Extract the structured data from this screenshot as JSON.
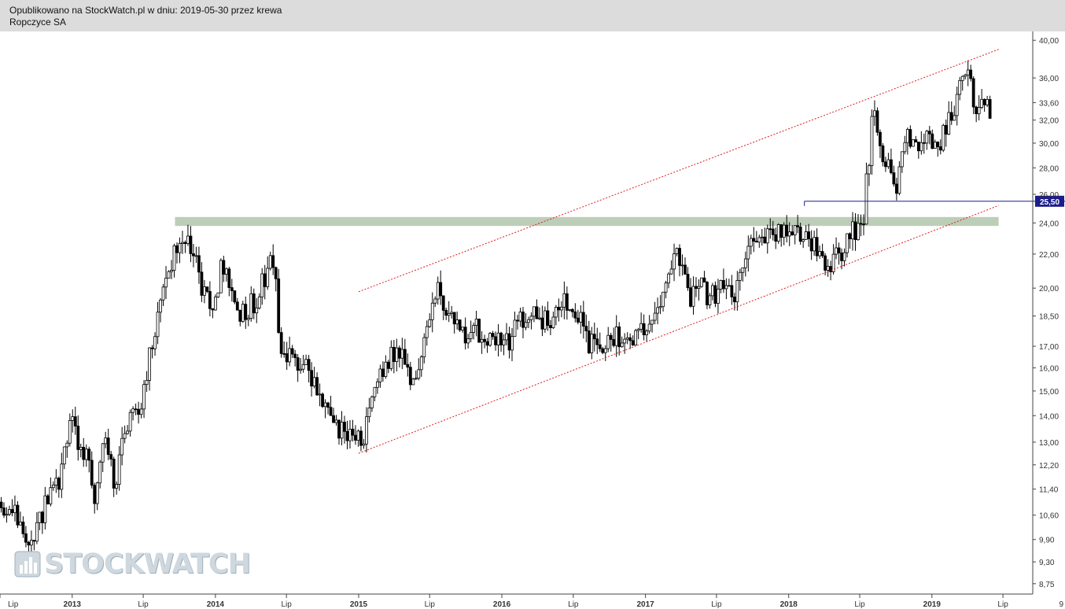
{
  "header": {
    "published": "Opublikowano na StockWatch.pl w dniu: 2019-05-30 przez krewa",
    "company": "Ropczyce SA"
  },
  "watermark": {
    "text": "STOCKWATCH"
  },
  "colors": {
    "header_bg": "#dcdcdc",
    "candle": "#000000",
    "channel": "#e31a1c",
    "zone": "#b5c9b0",
    "level": "#1c1c8c"
  },
  "chart_data": {
    "type": "candlestick",
    "title": "Ropczyce SA",
    "scale": "log",
    "grid": false,
    "ylim": [
      8.5,
      41.0
    ],
    "xlim": [
      "2012-07-01",
      "2019-09-15"
    ],
    "y_ticks": [
      {
        "value": 8.75,
        "label": "8,75"
      },
      {
        "value": 9.3,
        "label": "9,30"
      },
      {
        "value": 9.9,
        "label": "9,90"
      },
      {
        "value": 10.6,
        "label": "10,60"
      },
      {
        "value": 11.4,
        "label": "11,40"
      },
      {
        "value": 12.2,
        "label": "12,20"
      },
      {
        "value": 13.0,
        "label": "13,00"
      },
      {
        "value": 14.0,
        "label": "14,00"
      },
      {
        "value": 15.0,
        "label": "15,00"
      },
      {
        "value": 16.0,
        "label": "16,00"
      },
      {
        "value": 17.0,
        "label": "17,00"
      },
      {
        "value": 18.5,
        "label": "18,50"
      },
      {
        "value": 20.0,
        "label": "20,00"
      },
      {
        "value": 22.0,
        "label": "22,00"
      },
      {
        "value": 24.0,
        "label": "24,00"
      },
      {
        "value": 26.0,
        "label": "26,00"
      },
      {
        "value": 28.0,
        "label": "28,00"
      },
      {
        "value": 30.0,
        "label": "30,00"
      },
      {
        "value": 32.0,
        "label": "32,00"
      },
      {
        "value": 33.6,
        "label": "33,60"
      },
      {
        "value": 36.0,
        "label": "36,00"
      },
      {
        "value": 40.0,
        "label": "40,00"
      }
    ],
    "x_ticks": [
      {
        "date": "2012-07-01",
        "label": "Lip",
        "year": false
      },
      {
        "date": "2013-01-01",
        "label": "2013",
        "year": true
      },
      {
        "date": "2013-07-01",
        "label": "Lip",
        "year": false
      },
      {
        "date": "2014-01-01",
        "label": "2014",
        "year": true
      },
      {
        "date": "2014-07-01",
        "label": "Lip",
        "year": false
      },
      {
        "date": "2015-01-01",
        "label": "2015",
        "year": true
      },
      {
        "date": "2015-07-01",
        "label": "Lip",
        "year": false
      },
      {
        "date": "2016-01-01",
        "label": "2016",
        "year": true
      },
      {
        "date": "2016-07-01",
        "label": "Lip",
        "year": false
      },
      {
        "date": "2017-01-01",
        "label": "2017",
        "year": true
      },
      {
        "date": "2017-07-01",
        "label": "Lip",
        "year": false
      },
      {
        "date": "2018-01-01",
        "label": "2018",
        "year": true
      },
      {
        "date": "2018-07-01",
        "label": "Lip",
        "year": false
      },
      {
        "date": "2019-01-01",
        "label": "2019",
        "year": true
      },
      {
        "date": "2019-07-01",
        "label": "Lip",
        "year": false
      },
      {
        "date": "2019-12-31",
        "label": "9",
        "year": false
      }
    ],
    "price_path": [
      [
        "2012-06-20",
        11.2
      ],
      [
        "2012-08-15",
        10.5
      ],
      [
        "2012-09-15",
        9.5
      ],
      [
        "2012-10-20",
        10.8
      ],
      [
        "2012-11-20",
        11.3
      ],
      [
        "2012-12-10",
        12.5
      ],
      [
        "2012-12-28",
        14.3
      ],
      [
        "2013-01-15",
        13.0
      ],
      [
        "2013-02-10",
        12.3
      ],
      [
        "2013-02-28",
        11.2
      ],
      [
        "2013-03-25",
        13.2
      ],
      [
        "2013-04-20",
        11.5
      ],
      [
        "2013-05-15",
        13.5
      ],
      [
        "2013-06-20",
        14.0
      ],
      [
        "2013-07-15",
        16.5
      ],
      [
        "2013-08-10",
        19.0
      ],
      [
        "2013-09-01",
        21.0
      ],
      [
        "2013-10-15",
        23.3
      ],
      [
        "2013-11-05",
        22.0
      ],
      [
        "2013-11-25",
        20.0
      ],
      [
        "2013-12-25",
        18.8
      ],
      [
        "2014-01-20",
        21.5
      ],
      [
        "2014-02-15",
        19.0
      ],
      [
        "2014-03-15",
        18.8
      ],
      [
        "2014-04-20",
        19.3
      ],
      [
        "2014-05-15",
        21.5
      ],
      [
        "2014-06-01",
        21.3
      ],
      [
        "2014-06-15",
        17.0
      ],
      [
        "2014-07-15",
        16.2
      ],
      [
        "2014-08-20",
        16.5
      ],
      [
        "2014-09-15",
        15.0
      ],
      [
        "2014-10-10",
        14.0
      ],
      [
        "2014-11-10",
        13.6
      ],
      [
        "2014-12-15",
        13.0
      ],
      [
        "2015-01-15",
        13.3
      ],
      [
        "2015-02-15",
        15.5
      ],
      [
        "2015-03-20",
        16.5
      ],
      [
        "2015-04-25",
        16.8
      ],
      [
        "2015-05-20",
        15.2
      ],
      [
        "2015-06-15",
        17.0
      ],
      [
        "2015-07-20",
        20.0
      ],
      [
        "2015-08-20",
        18.5
      ],
      [
        "2015-09-20",
        17.5
      ],
      [
        "2015-10-20",
        18.0
      ],
      [
        "2015-11-15",
        17.2
      ],
      [
        "2015-12-15",
        17.5
      ],
      [
        "2016-01-15",
        17.2
      ],
      [
        "2016-02-15",
        18.5
      ],
      [
        "2016-03-20",
        18.4
      ],
      [
        "2016-04-20",
        18.2
      ],
      [
        "2016-05-20",
        18.4
      ],
      [
        "2016-06-20",
        19.5
      ],
      [
        "2016-07-20",
        18.5
      ],
      [
        "2016-08-15",
        17.0
      ],
      [
        "2016-09-20",
        17.3
      ],
      [
        "2016-10-20",
        17.4
      ],
      [
        "2016-11-20",
        17.6
      ],
      [
        "2016-12-20",
        17.5
      ],
      [
        "2017-01-20",
        18.0
      ],
      [
        "2017-02-15",
        19.5
      ],
      [
        "2017-03-15",
        22.5
      ],
      [
        "2017-04-01",
        21.0
      ],
      [
        "2017-04-20",
        19.5
      ],
      [
        "2017-05-20",
        20.0
      ],
      [
        "2017-06-20",
        19.5
      ],
      [
        "2017-07-20",
        20.0
      ],
      [
        "2017-08-20",
        19.6
      ],
      [
        "2017-09-20",
        23.0
      ],
      [
        "2017-10-20",
        22.5
      ],
      [
        "2017-11-20",
        23.5
      ],
      [
        "2017-12-20",
        23.8
      ],
      [
        "2018-01-20",
        23.4
      ],
      [
        "2018-02-15",
        23.0
      ],
      [
        "2018-03-20",
        22.0
      ],
      [
        "2018-04-20",
        21.5
      ],
      [
        "2018-05-20",
        22.5
      ],
      [
        "2018-06-20",
        23.5
      ],
      [
        "2018-07-10",
        24.5
      ],
      [
        "2018-07-25",
        29.0
      ],
      [
        "2018-08-05",
        33.0
      ],
      [
        "2018-08-25",
        29.5
      ],
      [
        "2018-09-10",
        28.0
      ],
      [
        "2018-10-05",
        26.8
      ],
      [
        "2018-10-25",
        30.5
      ],
      [
        "2018-11-20",
        30.0
      ],
      [
        "2018-12-20",
        31.0
      ],
      [
        "2019-01-20",
        30.0
      ],
      [
        "2019-02-20",
        32.5
      ],
      [
        "2019-03-15",
        35.5
      ],
      [
        "2019-04-05",
        37.0
      ],
      [
        "2019-04-20",
        32.5
      ],
      [
        "2019-05-05",
        33.5
      ],
      [
        "2019-05-30",
        33.3
      ]
    ],
    "annotations": {
      "resistance_zone": {
        "from": "2013-09-20",
        "to": "2019-06-20",
        "low": 23.8,
        "high": 24.4
      },
      "channel_upper": {
        "from": [
          "2015-01-01",
          19.8
        ],
        "to": [
          "2019-06-20",
          39.0
        ]
      },
      "channel_lower": {
        "from": [
          "2015-01-01",
          12.6
        ],
        "to": [
          "2019-06-20",
          25.2
        ]
      },
      "level": {
        "from": "2018-02-10",
        "value": 25.5,
        "label": "25,50"
      }
    }
  }
}
